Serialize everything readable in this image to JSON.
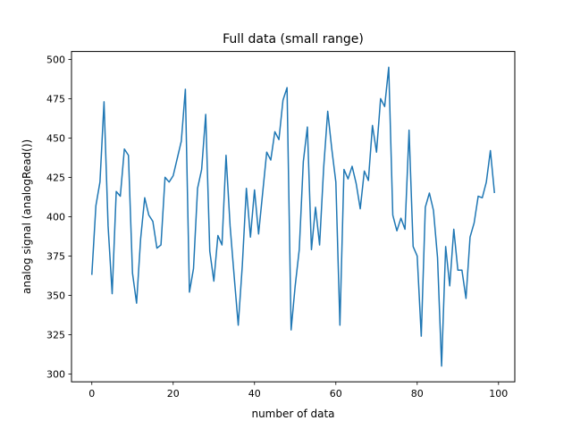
{
  "chart_data": {
    "type": "line",
    "title": "Full data (small range)",
    "xlabel": "number of data",
    "ylabel": "analog signal (analogRead())",
    "xlim": [
      -5,
      104
    ],
    "ylim": [
      295,
      505
    ],
    "xticks": [
      0,
      20,
      40,
      60,
      80,
      100
    ],
    "yticks": [
      300,
      325,
      350,
      375,
      400,
      425,
      450,
      475,
      500
    ],
    "grid": false,
    "line_color": "#1f77b4",
    "series": [
      {
        "x": [
          0,
          1,
          2,
          3,
          4,
          5,
          6,
          7,
          8,
          9,
          10,
          11,
          12,
          13,
          14,
          15,
          16,
          17,
          18,
          19,
          20,
          21,
          22,
          23,
          24,
          25,
          26,
          27,
          28,
          29,
          30,
          31,
          32,
          33,
          34,
          35,
          36,
          37,
          38,
          39,
          40,
          41,
          42,
          43,
          44,
          45,
          46,
          47,
          48,
          49,
          50,
          51,
          52,
          53,
          54,
          55,
          56,
          57,
          58,
          59,
          60,
          61,
          62,
          63,
          64,
          65,
          66,
          67,
          68,
          69,
          70,
          71,
          72,
          73,
          74,
          75,
          76,
          77,
          78,
          79,
          80,
          81,
          82,
          83,
          84,
          85,
          86,
          87,
          88,
          89,
          90,
          91,
          92,
          93,
          94,
          95,
          96,
          97,
          98,
          99
        ],
        "values": [
          363,
          407,
          422,
          473,
          394,
          351,
          416,
          413,
          443,
          439,
          364,
          345,
          386,
          412,
          401,
          397,
          380,
          382,
          425,
          422,
          426,
          437,
          448,
          481,
          352,
          367,
          418,
          430,
          465,
          378,
          359,
          388,
          382,
          439,
          394,
          362,
          331,
          369,
          418,
          387,
          417,
          389,
          415,
          441,
          436,
          454,
          449,
          474,
          482,
          328,
          356,
          379,
          435,
          457,
          379,
          406,
          382,
          431,
          467,
          443,
          422,
          331,
          430,
          424,
          432,
          421,
          405,
          429,
          423,
          458,
          441,
          475,
          470,
          495,
          401,
          391,
          399,
          392,
          455,
          381,
          375,
          324,
          406,
          415,
          404,
          374,
          305,
          381,
          356,
          392,
          366,
          366,
          348,
          387,
          396,
          413,
          412,
          422,
          442,
          415
        ]
      }
    ]
  }
}
